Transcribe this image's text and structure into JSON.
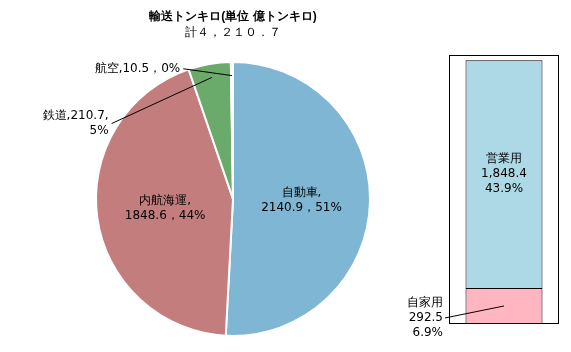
{
  "chart_data": [
    {
      "type": "pie",
      "title": "輸送トンキロ(単位 億トンキロ)",
      "subtitle": "計４，２１０．７",
      "categories": [
        "自動車",
        "内航海運",
        "鉄道",
        "航空"
      ],
      "values": [
        2140.9,
        1848.6,
        210.7,
        10.5
      ],
      "colors": [
        "#7eb6d4",
        "#c47d7d",
        "#6aaa6a",
        "#c8a050"
      ],
      "data_labels": true,
      "value_labels": [
        "自動車,\n2140.9，51%",
        "内航海運,\n1848.6，44%",
        "鉄道,210.7,\n5%",
        "航空,10.5，0%"
      ]
    },
    {
      "type": "bar",
      "stacked": true,
      "categories": [
        null
      ],
      "series": [
        {
          "name": "自家用",
          "color": "#ffb6c1",
          "values": [
            292.5
          ],
          "value_labels": [
            "292.5\n6.9%"
          ]
        },
        {
          "name": "営業用",
          "color": "#add8e6",
          "values": [
            1848.4
          ],
          "value_labels": [
            "1,848.4\n43.9%"
          ]
        }
      ],
      "ylim": [
        0,
        2183.718
      ],
      "tick_labels": false,
      "data_labels": true
    }
  ]
}
